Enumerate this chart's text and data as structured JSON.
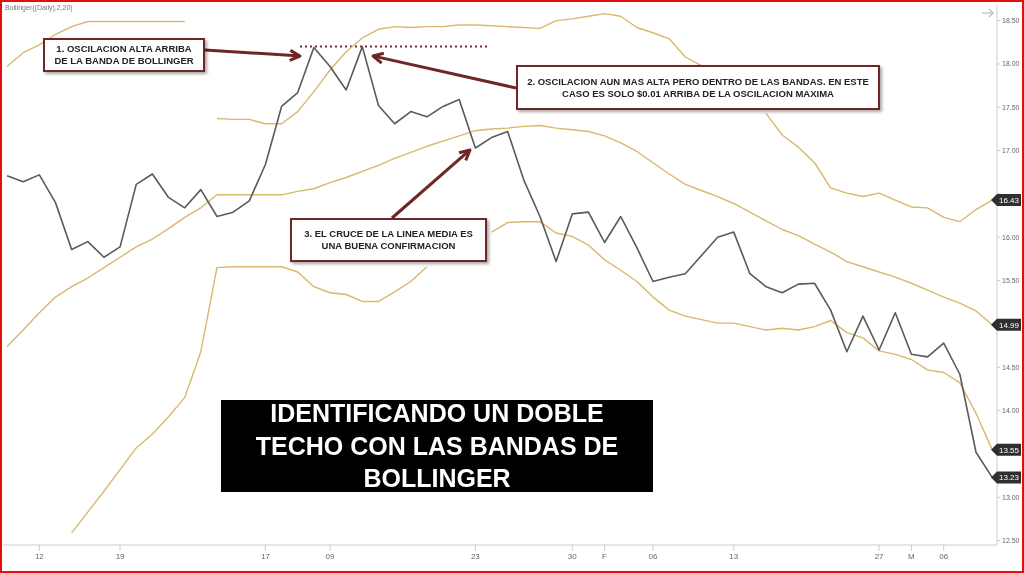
{
  "chart_data": {
    "type": "line",
    "title": "IDENTIFICANDO UN DOBLE TECHO CON LAS BANDAS DE BOLLINGER",
    "subtitle": "Bollinger((Daily),2,20)",
    "annotations": [
      "1. OSCILACION ALTA ARRIBA DE LA BANDA DE BOLLINGER",
      "2. OSCILACION AUN MAS ALTA PERO DENTRO DE LAS BANDAS. EN ESTE CASO ES SOLO $0.01 ARRIBA DE LA OSCILACION MAXIMA",
      "3. EL CRUCE DE LA LINEA MEDIA ES UNA BUENA CONFIRMACION"
    ],
    "categories": [
      null,
      null,
      "12",
      null,
      null,
      null,
      null,
      "19",
      null,
      null,
      null,
      null,
      null,
      null,
      null,
      null,
      "17",
      null,
      null,
      null,
      "09",
      null,
      null,
      null,
      null,
      null,
      null,
      null,
      null,
      "23",
      null,
      null,
      null,
      null,
      null,
      "30",
      null,
      "F",
      null,
      null,
      "06",
      null,
      null,
      null,
      null,
      "13",
      null,
      null,
      null,
      null,
      null,
      null,
      null,
      null,
      "27",
      null,
      "M",
      null,
      "06",
      null,
      null,
      null
    ],
    "series": [
      {
        "color": "#d9b86c",
        "values": [
          17.97,
          18.13,
          18.22,
          18.34,
          18.43,
          18.49,
          18.49,
          18.49,
          18.49,
          18.49,
          18.49,
          18.49,
          null,
          17.37,
          17.36,
          17.36,
          17.31,
          17.31,
          17.45,
          17.68,
          17.93,
          18.14,
          18.3,
          18.4,
          18.43,
          18.42,
          18.43,
          18.43,
          18.45,
          18.45,
          18.44,
          18.43,
          18.42,
          18.41,
          18.5,
          18.52,
          18.55,
          18.58,
          18.55,
          18.42,
          18.36,
          18.29,
          18.08,
          17.98,
          null,
          null,
          null,
          17.43,
          17.18,
          17.04,
          16.86,
          16.57,
          16.51,
          16.47,
          16.51,
          16.43,
          16.35,
          16.34,
          16.23,
          16.18,
          16.32,
          16.43
        ],
        "value_labels": [
          null,
          null,
          null,
          null,
          null,
          null,
          null,
          null,
          null,
          null,
          null,
          null,
          null,
          null,
          null,
          null,
          null,
          null,
          null,
          null,
          null,
          null,
          null,
          null,
          null,
          null,
          null,
          null,
          null,
          null,
          null,
          null,
          null,
          null,
          null,
          null,
          null,
          null,
          null,
          null,
          null,
          null,
          null,
          null,
          null,
          null,
          null,
          null,
          null,
          null,
          null,
          null,
          null,
          null,
          null,
          null,
          null,
          null,
          null,
          null,
          null,
          "16.43"
        ]
      },
      {
        "color": "#d9b86c",
        "values": [
          14.74,
          14.93,
          15.13,
          15.31,
          15.43,
          15.53,
          15.65,
          15.77,
          15.89,
          15.98,
          16.1,
          16.23,
          16.34,
          16.49,
          16.49,
          16.49,
          16.49,
          16.49,
          16.53,
          16.56,
          16.63,
          16.69,
          16.76,
          16.83,
          16.91,
          16.98,
          17.05,
          17.11,
          17.17,
          17.23,
          17.25,
          17.26,
          17.28,
          17.29,
          17.26,
          17.24,
          17.22,
          17.17,
          17.09,
          16.99,
          16.86,
          16.73,
          16.61,
          16.54,
          16.47,
          16.39,
          16.29,
          16.19,
          16.09,
          16.02,
          15.92,
          15.83,
          15.72,
          15.66,
          15.6,
          15.54,
          15.47,
          15.39,
          15.31,
          15.24,
          15.15,
          14.99
        ],
        "value_labels": [
          null,
          null,
          null,
          null,
          null,
          null,
          null,
          null,
          null,
          null,
          null,
          null,
          null,
          null,
          null,
          null,
          null,
          null,
          null,
          null,
          null,
          null,
          null,
          null,
          null,
          null,
          null,
          null,
          null,
          null,
          null,
          null,
          null,
          null,
          null,
          null,
          null,
          null,
          null,
          null,
          null,
          null,
          null,
          null,
          null,
          null,
          null,
          null,
          null,
          null,
          null,
          null,
          null,
          null,
          null,
          null,
          null,
          null,
          null,
          null,
          null,
          "14.99"
        ]
      },
      {
        "color": "#d9b86c",
        "values": [
          null,
          null,
          null,
          null,
          12.59,
          12.83,
          13.07,
          13.32,
          13.57,
          13.73,
          13.93,
          14.15,
          14.68,
          15.65,
          15.66,
          15.66,
          15.66,
          15.66,
          15.6,
          15.43,
          15.36,
          15.34,
          15.26,
          15.26,
          15.37,
          15.49,
          15.66,
          null,
          null,
          null,
          16.06,
          16.17,
          16.18,
          16.18,
          16.05,
          16.01,
          15.91,
          15.74,
          15.62,
          15.49,
          15.31,
          15.16,
          15.09,
          15.05,
          15.01,
          15.01,
          14.97,
          14.93,
          14.95,
          14.93,
          14.97,
          15.04,
          14.9,
          14.84,
          14.69,
          14.65,
          14.59,
          14.47,
          14.44,
          14.32,
          13.97,
          13.55
        ],
        "value_labels": [
          null,
          null,
          null,
          null,
          null,
          null,
          null,
          null,
          null,
          null,
          null,
          null,
          null,
          null,
          null,
          null,
          null,
          null,
          null,
          null,
          null,
          null,
          null,
          null,
          null,
          null,
          null,
          null,
          null,
          null,
          null,
          null,
          null,
          null,
          null,
          null,
          null,
          null,
          null,
          null,
          null,
          null,
          null,
          null,
          null,
          null,
          null,
          null,
          null,
          null,
          null,
          null,
          null,
          null,
          null,
          null,
          null,
          null,
          null,
          null,
          null,
          "13.55"
        ]
      },
      {
        "color": "#5a5a5a",
        "values": [
          16.71,
          16.64,
          16.72,
          16.4,
          15.86,
          15.95,
          15.77,
          15.89,
          16.61,
          16.73,
          16.46,
          16.34,
          16.55,
          16.24,
          16.29,
          16.42,
          16.84,
          17.51,
          17.67,
          18.19,
          17.97,
          17.7,
          18.2,
          17.52,
          17.31,
          17.45,
          17.39,
          17.51,
          17.59,
          17.03,
          17.15,
          17.22,
          16.66,
          16.24,
          15.72,
          16.27,
          16.29,
          15.94,
          16.24,
          15.88,
          15.49,
          15.54,
          15.58,
          15.79,
          16.0,
          16.06,
          15.58,
          15.43,
          15.36,
          15.46,
          15.47,
          15.16,
          14.68,
          15.09,
          14.7,
          15.13,
          14.65,
          14.62,
          14.78,
          14.42,
          13.52,
          13.23
        ],
        "value_labels": [
          null,
          null,
          null,
          null,
          null,
          null,
          null,
          null,
          null,
          null,
          null,
          null,
          null,
          null,
          null,
          null,
          null,
          null,
          null,
          null,
          null,
          null,
          null,
          null,
          null,
          null,
          null,
          null,
          null,
          null,
          null,
          null,
          null,
          null,
          null,
          null,
          null,
          null,
          null,
          null,
          null,
          null,
          null,
          null,
          null,
          null,
          null,
          null,
          null,
          null,
          null,
          null,
          null,
          null,
          null,
          null,
          null,
          null,
          null,
          null,
          null,
          "13.23"
        ]
      }
    ],
    "ref_lines": [
      {
        "axis": "y",
        "value": 18.2,
        "color": "#7a2a2a",
        "line_style": "dotted"
      }
    ],
    "ylim": [
      12.45,
      18.68
    ],
    "yticks": [
      {
        "value": 12.5,
        "label": "12.50"
      },
      {
        "value": 13,
        "label": "13.00"
      },
      {
        "value": 13.5,
        "label": null
      },
      {
        "value": 14,
        "label": "14.00"
      },
      {
        "value": 14.5,
        "label": "14.50"
      },
      {
        "value": 15,
        "label": null
      },
      {
        "value": 15.5,
        "label": "15.50"
      },
      {
        "value": 16,
        "label": "16.00"
      },
      {
        "value": 16.5,
        "label": null
      },
      {
        "value": 17,
        "label": "17.00"
      },
      {
        "value": 17.5,
        "label": "17.50"
      },
      {
        "value": 18,
        "label": "18.00"
      },
      {
        "value": 18.5,
        "label": "18.50"
      }
    ],
    "marker": "none",
    "line_style": "solid"
  }
}
